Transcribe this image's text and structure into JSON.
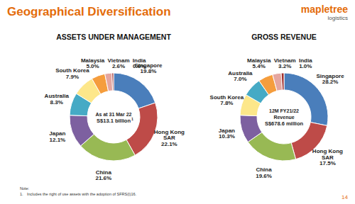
{
  "page": {
    "title": "Geographical Diversification",
    "logo": [
      "mapletree",
      "logistics"
    ],
    "note_heading": "Note:",
    "notes": [
      "1.",
      "Includes the right of use assets with the adoption of SFRS(I)16."
    ],
    "page_number": "14"
  },
  "chart_data": [
    {
      "type": "pie",
      "title": "ASSETS UNDER MANAGEMENT",
      "center_text": [
        "As at 31 Mar 22",
        "S$13.1 billion"
      ],
      "center_text_note": "1",
      "categories": [
        "Singapore",
        "Hong Kong SAR",
        "China",
        "Japan",
        "Australia",
        "South Korea",
        "Malaysia",
        "Vietnam",
        "India"
      ],
      "values": [
        19.8,
        22.1,
        21.6,
        12.1,
        8.3,
        7.9,
        5.0,
        2.6,
        0.6
      ],
      "value_labels": [
        "19.8%",
        "22.1%",
        "21.6%",
        "12.1%",
        "8.3%",
        "7.9%",
        "5.0%",
        "2.6%",
        "0.6%"
      ],
      "colors": [
        "#4a7ebb",
        "#be4b48",
        "#98b954",
        "#7d60a0",
        "#46aac5",
        "#fde78a",
        "#f59d3d",
        "#e5a6a0",
        "#a0302f"
      ],
      "data_labels": true
    },
    {
      "type": "pie",
      "title": "GROSS REVENUE",
      "center_text": [
        "12M FY21/22",
        "Revenue",
        "S$678.6 million"
      ],
      "categories": [
        "Singapore",
        "Hong Kong SAR",
        "China",
        "Japan",
        "South Korea",
        "Australia",
        "Malaysia",
        "Vietnam",
        "India"
      ],
      "values": [
        28.2,
        17.5,
        19.6,
        10.3,
        7.8,
        7.0,
        5.4,
        3.2,
        1.0
      ],
      "value_labels": [
        "28.2%",
        "17.5%",
        "19.6%",
        "10.3%",
        "7.8%",
        "7.0%",
        "5.4%",
        "3.2%",
        "1.0%"
      ],
      "colors": [
        "#4a7ebb",
        "#be4b48",
        "#98b954",
        "#7d60a0",
        "#fde78a",
        "#46aac5",
        "#f59d3d",
        "#e5a6a0",
        "#a0302f"
      ],
      "data_labels": true
    }
  ]
}
